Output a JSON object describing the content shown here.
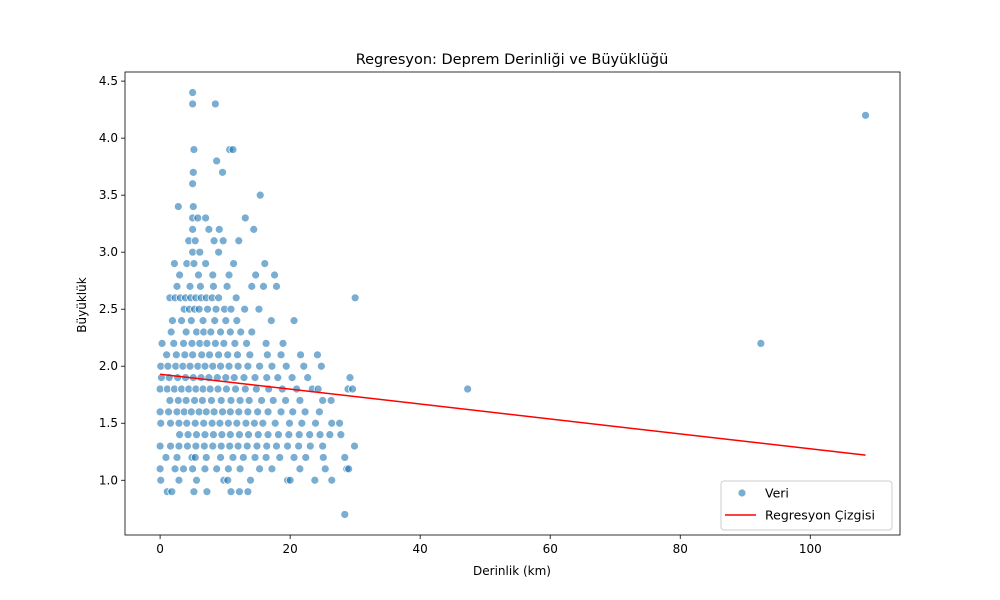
{
  "chart_data": {
    "type": "scatter",
    "title": "Regresyon: Deprem Derinliği ve Büyüklüğü",
    "xlabel": "Derinlik (km)",
    "ylabel": "Büyüklük",
    "xlim": [
      -5.4,
      113.8
    ],
    "ylim": [
      0.52,
      4.58
    ],
    "x_ticks": [
      0,
      20,
      40,
      60,
      80,
      100
    ],
    "y_ticks": [
      1.0,
      1.5,
      2.0,
      2.5,
      3.0,
      3.5,
      4.0,
      4.5
    ],
    "grid": false,
    "legend_position": "bottom-right",
    "colors": {
      "points": "#1f77b4",
      "regression": "#ff0000"
    },
    "series": [
      {
        "name": "Veri",
        "type": "scatter",
        "points": [
          [
            5.0,
            4.4
          ],
          [
            5.0,
            4.3
          ],
          [
            8.5,
            4.3
          ],
          [
            108.5,
            4.2
          ],
          [
            10.7,
            3.9
          ],
          [
            11.2,
            3.9
          ],
          [
            5.2,
            3.9
          ],
          [
            8.7,
            3.8
          ],
          [
            9.6,
            3.7
          ],
          [
            5.1,
            3.7
          ],
          [
            5.0,
            3.6
          ],
          [
            15.4,
            3.5
          ],
          [
            2.8,
            3.4
          ],
          [
            5.1,
            3.4
          ],
          [
            5.0,
            3.3
          ],
          [
            5.8,
            3.3
          ],
          [
            7.0,
            3.3
          ],
          [
            13.1,
            3.3
          ],
          [
            5.0,
            3.2
          ],
          [
            7.5,
            3.2
          ],
          [
            9.1,
            3.2
          ],
          [
            14.4,
            3.2
          ],
          [
            4.4,
            3.1
          ],
          [
            5.4,
            3.1
          ],
          [
            8.3,
            3.1
          ],
          [
            9.7,
            3.1
          ],
          [
            12.1,
            3.1
          ],
          [
            5.0,
            3.0
          ],
          [
            6.1,
            3.0
          ],
          [
            9.0,
            3.0
          ],
          [
            2.2,
            2.9
          ],
          [
            4.1,
            2.9
          ],
          [
            5.2,
            2.9
          ],
          [
            7.0,
            2.9
          ],
          [
            11.3,
            2.9
          ],
          [
            16.1,
            2.9
          ],
          [
            3.0,
            2.8
          ],
          [
            5.9,
            2.8
          ],
          [
            8.1,
            2.8
          ],
          [
            10.6,
            2.8
          ],
          [
            14.7,
            2.8
          ],
          [
            17.6,
            2.8
          ],
          [
            2.6,
            2.7
          ],
          [
            4.6,
            2.7
          ],
          [
            6.2,
            2.7
          ],
          [
            8.2,
            2.7
          ],
          [
            10.3,
            2.7
          ],
          [
            14.1,
            2.7
          ],
          [
            15.9,
            2.7
          ],
          [
            17.9,
            2.7
          ],
          [
            1.5,
            2.6
          ],
          [
            2.3,
            2.6
          ],
          [
            3.1,
            2.6
          ],
          [
            3.9,
            2.6
          ],
          [
            4.7,
            2.6
          ],
          [
            5.5,
            2.6
          ],
          [
            6.3,
            2.6
          ],
          [
            7.1,
            2.6
          ],
          [
            8.0,
            2.6
          ],
          [
            9.0,
            2.6
          ],
          [
            11.7,
            2.6
          ],
          [
            30.0,
            2.6
          ],
          [
            3.7,
            2.5
          ],
          [
            4.5,
            2.5
          ],
          [
            5.3,
            2.5
          ],
          [
            6.0,
            2.5
          ],
          [
            7.3,
            2.5
          ],
          [
            8.6,
            2.5
          ],
          [
            9.9,
            2.5
          ],
          [
            10.9,
            2.5
          ],
          [
            13.0,
            2.5
          ],
          [
            15.2,
            2.5
          ],
          [
            1.9,
            2.4
          ],
          [
            3.3,
            2.4
          ],
          [
            4.8,
            2.4
          ],
          [
            6.6,
            2.4
          ],
          [
            8.4,
            2.4
          ],
          [
            10.1,
            2.4
          ],
          [
            11.8,
            2.4
          ],
          [
            17.1,
            2.4
          ],
          [
            20.6,
            2.4
          ],
          [
            1.7,
            2.3
          ],
          [
            4.0,
            2.3
          ],
          [
            5.6,
            2.3
          ],
          [
            6.7,
            2.3
          ],
          [
            7.8,
            2.3
          ],
          [
            9.3,
            2.3
          ],
          [
            10.8,
            2.3
          ],
          [
            12.4,
            2.3
          ],
          [
            14.1,
            2.3
          ],
          [
            0.3,
            2.2
          ],
          [
            2.1,
            2.2
          ],
          [
            3.6,
            2.2
          ],
          [
            4.9,
            2.2
          ],
          [
            6.1,
            2.2
          ],
          [
            7.2,
            2.2
          ],
          [
            8.5,
            2.2
          ],
          [
            9.8,
            2.2
          ],
          [
            11.5,
            2.2
          ],
          [
            13.3,
            2.2
          ],
          [
            16.3,
            2.2
          ],
          [
            18.9,
            2.2
          ],
          [
            1.0,
            2.1
          ],
          [
            2.5,
            2.1
          ],
          [
            3.8,
            2.1
          ],
          [
            5.0,
            2.1
          ],
          [
            6.4,
            2.1
          ],
          [
            7.6,
            2.1
          ],
          [
            9.0,
            2.1
          ],
          [
            10.4,
            2.1
          ],
          [
            11.9,
            2.1
          ],
          [
            13.8,
            2.1
          ],
          [
            16.5,
            2.1
          ],
          [
            18.6,
            2.1
          ],
          [
            21.6,
            2.1
          ],
          [
            24.2,
            2.1
          ],
          [
            0.1,
            2.0
          ],
          [
            1.2,
            2.0
          ],
          [
            2.4,
            2.0
          ],
          [
            3.5,
            2.0
          ],
          [
            4.6,
            2.0
          ],
          [
            5.8,
            2.0
          ],
          [
            6.9,
            2.0
          ],
          [
            8.1,
            2.0
          ],
          [
            9.3,
            2.0
          ],
          [
            10.6,
            2.0
          ],
          [
            12.0,
            2.0
          ],
          [
            13.5,
            2.0
          ],
          [
            15.3,
            2.0
          ],
          [
            17.2,
            2.0
          ],
          [
            19.4,
            2.0
          ],
          [
            22.1,
            2.0
          ],
          [
            24.8,
            2.0
          ],
          [
            0.2,
            1.9
          ],
          [
            1.4,
            1.9
          ],
          [
            2.7,
            1.9
          ],
          [
            3.9,
            1.9
          ],
          [
            5.1,
            1.9
          ],
          [
            6.3,
            1.9
          ],
          [
            7.5,
            1.9
          ],
          [
            8.8,
            1.9
          ],
          [
            10.1,
            1.9
          ],
          [
            11.4,
            1.9
          ],
          [
            12.9,
            1.9
          ],
          [
            14.6,
            1.9
          ],
          [
            16.4,
            1.9
          ],
          [
            18.1,
            1.9
          ],
          [
            20.3,
            1.9
          ],
          [
            22.7,
            1.9
          ],
          [
            29.2,
            1.9
          ],
          [
            0.0,
            1.8
          ],
          [
            1.1,
            1.8
          ],
          [
            2.2,
            1.8
          ],
          [
            3.3,
            1.8
          ],
          [
            4.4,
            1.8
          ],
          [
            5.5,
            1.8
          ],
          [
            6.6,
            1.8
          ],
          [
            7.7,
            1.8
          ],
          [
            8.9,
            1.8
          ],
          [
            10.2,
            1.8
          ],
          [
            11.6,
            1.8
          ],
          [
            13.1,
            1.8
          ],
          [
            14.8,
            1.8
          ],
          [
            16.7,
            1.8
          ],
          [
            18.8,
            1.8
          ],
          [
            21.0,
            1.8
          ],
          [
            23.4,
            1.8
          ],
          [
            24.3,
            1.8
          ],
          [
            28.9,
            1.8
          ],
          [
            29.6,
            1.8
          ],
          [
            47.3,
            1.8
          ],
          [
            1.5,
            1.7
          ],
          [
            2.8,
            1.7
          ],
          [
            4.0,
            1.7
          ],
          [
            5.3,
            1.7
          ],
          [
            6.5,
            1.7
          ],
          [
            7.9,
            1.7
          ],
          [
            9.4,
            1.7
          ],
          [
            10.9,
            1.7
          ],
          [
            12.3,
            1.7
          ],
          [
            13.7,
            1.7
          ],
          [
            15.6,
            1.7
          ],
          [
            17.4,
            1.7
          ],
          [
            19.3,
            1.7
          ],
          [
            21.5,
            1.7
          ],
          [
            25.0,
            1.7
          ],
          [
            26.3,
            1.7
          ],
          [
            0.0,
            1.6
          ],
          [
            1.3,
            1.6
          ],
          [
            2.6,
            1.6
          ],
          [
            3.7,
            1.6
          ],
          [
            4.8,
            1.6
          ],
          [
            6.0,
            1.6
          ],
          [
            7.1,
            1.6
          ],
          [
            8.3,
            1.6
          ],
          [
            9.6,
            1.6
          ],
          [
            10.8,
            1.6
          ],
          [
            12.1,
            1.6
          ],
          [
            13.5,
            1.6
          ],
          [
            15.0,
            1.6
          ],
          [
            16.6,
            1.6
          ],
          [
            18.6,
            1.6
          ],
          [
            20.4,
            1.6
          ],
          [
            22.3,
            1.6
          ],
          [
            24.5,
            1.6
          ],
          [
            0.1,
            1.5
          ],
          [
            1.6,
            1.5
          ],
          [
            2.9,
            1.5
          ],
          [
            4.1,
            1.5
          ],
          [
            5.4,
            1.5
          ],
          [
            6.7,
            1.5
          ],
          [
            8.0,
            1.5
          ],
          [
            9.2,
            1.5
          ],
          [
            10.5,
            1.5
          ],
          [
            11.8,
            1.5
          ],
          [
            13.2,
            1.5
          ],
          [
            14.5,
            1.5
          ],
          [
            15.8,
            1.5
          ],
          [
            17.7,
            1.5
          ],
          [
            19.9,
            1.5
          ],
          [
            21.8,
            1.5
          ],
          [
            23.9,
            1.5
          ],
          [
            26.4,
            1.5
          ],
          [
            27.6,
            1.5
          ],
          [
            3.0,
            1.4
          ],
          [
            4.3,
            1.4
          ],
          [
            5.6,
            1.4
          ],
          [
            6.9,
            1.4
          ],
          [
            8.2,
            1.4
          ],
          [
            9.5,
            1.4
          ],
          [
            10.8,
            1.4
          ],
          [
            12.2,
            1.4
          ],
          [
            13.6,
            1.4
          ],
          [
            15.1,
            1.4
          ],
          [
            16.6,
            1.4
          ],
          [
            18.2,
            1.4
          ],
          [
            19.8,
            1.4
          ],
          [
            21.4,
            1.4
          ],
          [
            23.0,
            1.4
          ],
          [
            24.6,
            1.4
          ],
          [
            26.1,
            1.4
          ],
          [
            27.8,
            1.4
          ],
          [
            0.0,
            1.3
          ],
          [
            1.6,
            1.3
          ],
          [
            2.9,
            1.3
          ],
          [
            4.2,
            1.3
          ],
          [
            5.5,
            1.3
          ],
          [
            6.8,
            1.3
          ],
          [
            8.1,
            1.3
          ],
          [
            9.4,
            1.3
          ],
          [
            10.7,
            1.3
          ],
          [
            12.0,
            1.3
          ],
          [
            13.4,
            1.3
          ],
          [
            14.9,
            1.3
          ],
          [
            16.4,
            1.3
          ],
          [
            17.9,
            1.3
          ],
          [
            19.6,
            1.3
          ],
          [
            21.3,
            1.3
          ],
          [
            23.1,
            1.3
          ],
          [
            25.0,
            1.3
          ],
          [
            29.9,
            1.3
          ],
          [
            0.9,
            1.2
          ],
          [
            2.6,
            1.2
          ],
          [
            4.9,
            1.2
          ],
          [
            5.4,
            1.2
          ],
          [
            7.1,
            1.2
          ],
          [
            9.3,
            1.2
          ],
          [
            11.2,
            1.2
          ],
          [
            12.8,
            1.2
          ],
          [
            14.6,
            1.2
          ],
          [
            16.3,
            1.2
          ],
          [
            18.4,
            1.2
          ],
          [
            20.6,
            1.2
          ],
          [
            22.4,
            1.2
          ],
          [
            25.1,
            1.2
          ],
          [
            28.4,
            1.2
          ],
          [
            0.0,
            1.1
          ],
          [
            2.3,
            1.1
          ],
          [
            3.6,
            1.1
          ],
          [
            5.0,
            1.1
          ],
          [
            6.9,
            1.1
          ],
          [
            8.7,
            1.1
          ],
          [
            10.5,
            1.1
          ],
          [
            12.3,
            1.1
          ],
          [
            15.3,
            1.1
          ],
          [
            17.2,
            1.1
          ],
          [
            21.5,
            1.1
          ],
          [
            25.4,
            1.1
          ],
          [
            28.7,
            1.1
          ],
          [
            29.0,
            1.1
          ],
          [
            0.1,
            1.0
          ],
          [
            2.9,
            1.0
          ],
          [
            5.6,
            1.0
          ],
          [
            9.8,
            1.0
          ],
          [
            10.4,
            1.0
          ],
          [
            13.9,
            1.0
          ],
          [
            19.6,
            1.0
          ],
          [
            20.0,
            1.0
          ],
          [
            23.8,
            1.0
          ],
          [
            26.4,
            1.0
          ],
          [
            1.1,
            0.9
          ],
          [
            1.8,
            0.9
          ],
          [
            5.2,
            0.9
          ],
          [
            7.2,
            0.9
          ],
          [
            10.9,
            0.9
          ],
          [
            12.2,
            0.9
          ],
          [
            13.5,
            0.9
          ],
          [
            28.4,
            0.7
          ],
          [
            92.4,
            2.2
          ]
        ]
      },
      {
        "name": "Regresyon Çizgisi",
        "type": "line",
        "points": [
          [
            0.0,
            1.93
          ],
          [
            108.5,
            1.22
          ]
        ]
      }
    ]
  }
}
